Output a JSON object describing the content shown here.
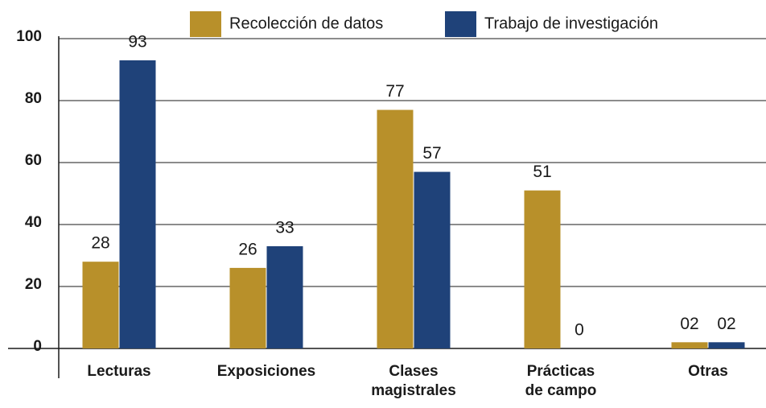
{
  "chart_data": {
    "type": "bar",
    "categories": [
      "Lecturas",
      "Exposiciones",
      "Clases\nmagistrales",
      "Prácticas\nde campo",
      "Otras"
    ],
    "series": [
      {
        "name": "Recolección de datos",
        "color": "#b8902a",
        "values": [
          28,
          26,
          77,
          51,
          2
        ],
        "value_labels": [
          "28",
          "26",
          "77",
          "51",
          "02"
        ]
      },
      {
        "name": "Trabajo de investigación",
        "color": "#1f4279",
        "values": [
          93,
          33,
          57,
          0,
          2
        ],
        "value_labels": [
          "93",
          "33",
          "57",
          "0",
          "02"
        ]
      }
    ],
    "ylim": [
      0,
      100
    ],
    "yticks": [
      0,
      20,
      40,
      60,
      80,
      100
    ],
    "grid": true,
    "legend": "top"
  }
}
